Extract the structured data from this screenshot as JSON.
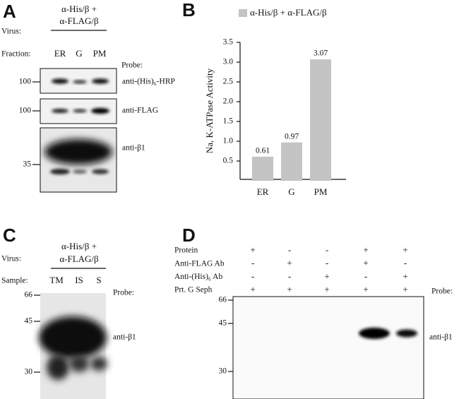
{
  "panel_labels": [
    "A",
    "B",
    "C",
    "D"
  ],
  "panel_a": {
    "virus_label": "Virus:",
    "virus": [
      "α-His/β +",
      "α-FLAG/β"
    ],
    "fraction_label": "Fraction:",
    "lanes": [
      "ER",
      "G",
      "PM"
    ],
    "probe_label": "Probe:",
    "blots": [
      {
        "marker": "100",
        "probe": "anti-(His)₆-HRP"
      },
      {
        "marker": "100",
        "probe": "anti-FLAG"
      },
      {
        "marker": "35",
        "probe": "anti-β1"
      }
    ]
  },
  "chart_data": {
    "type": "bar",
    "y_label": "Na, K-ATPase Activity",
    "categories": [
      "ER",
      "G",
      "PM"
    ],
    "series": [
      {
        "name": "α-His/β + α-FLAG/β",
        "color": "#c4c4c4",
        "values": [
          0.61,
          0.97,
          3.07
        ]
      }
    ],
    "ylim": [
      0,
      3.5
    ],
    "yticks": [
      0.5,
      {
        "value": 1,
        "label": "1.0"
      },
      1.5,
      {
        "value": 2,
        "label": "2.0"
      },
      2.5,
      {
        "value": 3,
        "label": "3.0"
      },
      3.5
    ],
    "grid": false
  },
  "panel_c": {
    "virus_label": "Virus:",
    "virus": [
      "α-His/β +",
      "α-FLAG/β"
    ],
    "sample_label": "Sample:",
    "lanes": [
      "TM",
      "IS",
      "S"
    ],
    "probe_label": "Probe:",
    "markers": [
      "66",
      "45",
      "30"
    ],
    "probe": "anti-β1"
  },
  "panel_d": {
    "rows": [
      {
        "label": "Protein",
        "signs": [
          "+",
          "-",
          "-",
          "+",
          "+"
        ]
      },
      {
        "label": "Anti-FLAG Ab",
        "signs": [
          "-",
          "+",
          "-",
          "+",
          "-"
        ]
      },
      {
        "label": "Anti-(His)₆ Ab",
        "signs": [
          "-",
          "-",
          "+",
          "-",
          "+"
        ]
      },
      {
        "label": "Prt. G Seph",
        "signs": [
          "+",
          "+",
          "+",
          "+",
          "+"
        ]
      }
    ],
    "probe_label": "Probe:",
    "markers": [
      "66",
      "45",
      "30"
    ],
    "probe": "anti-β1"
  }
}
